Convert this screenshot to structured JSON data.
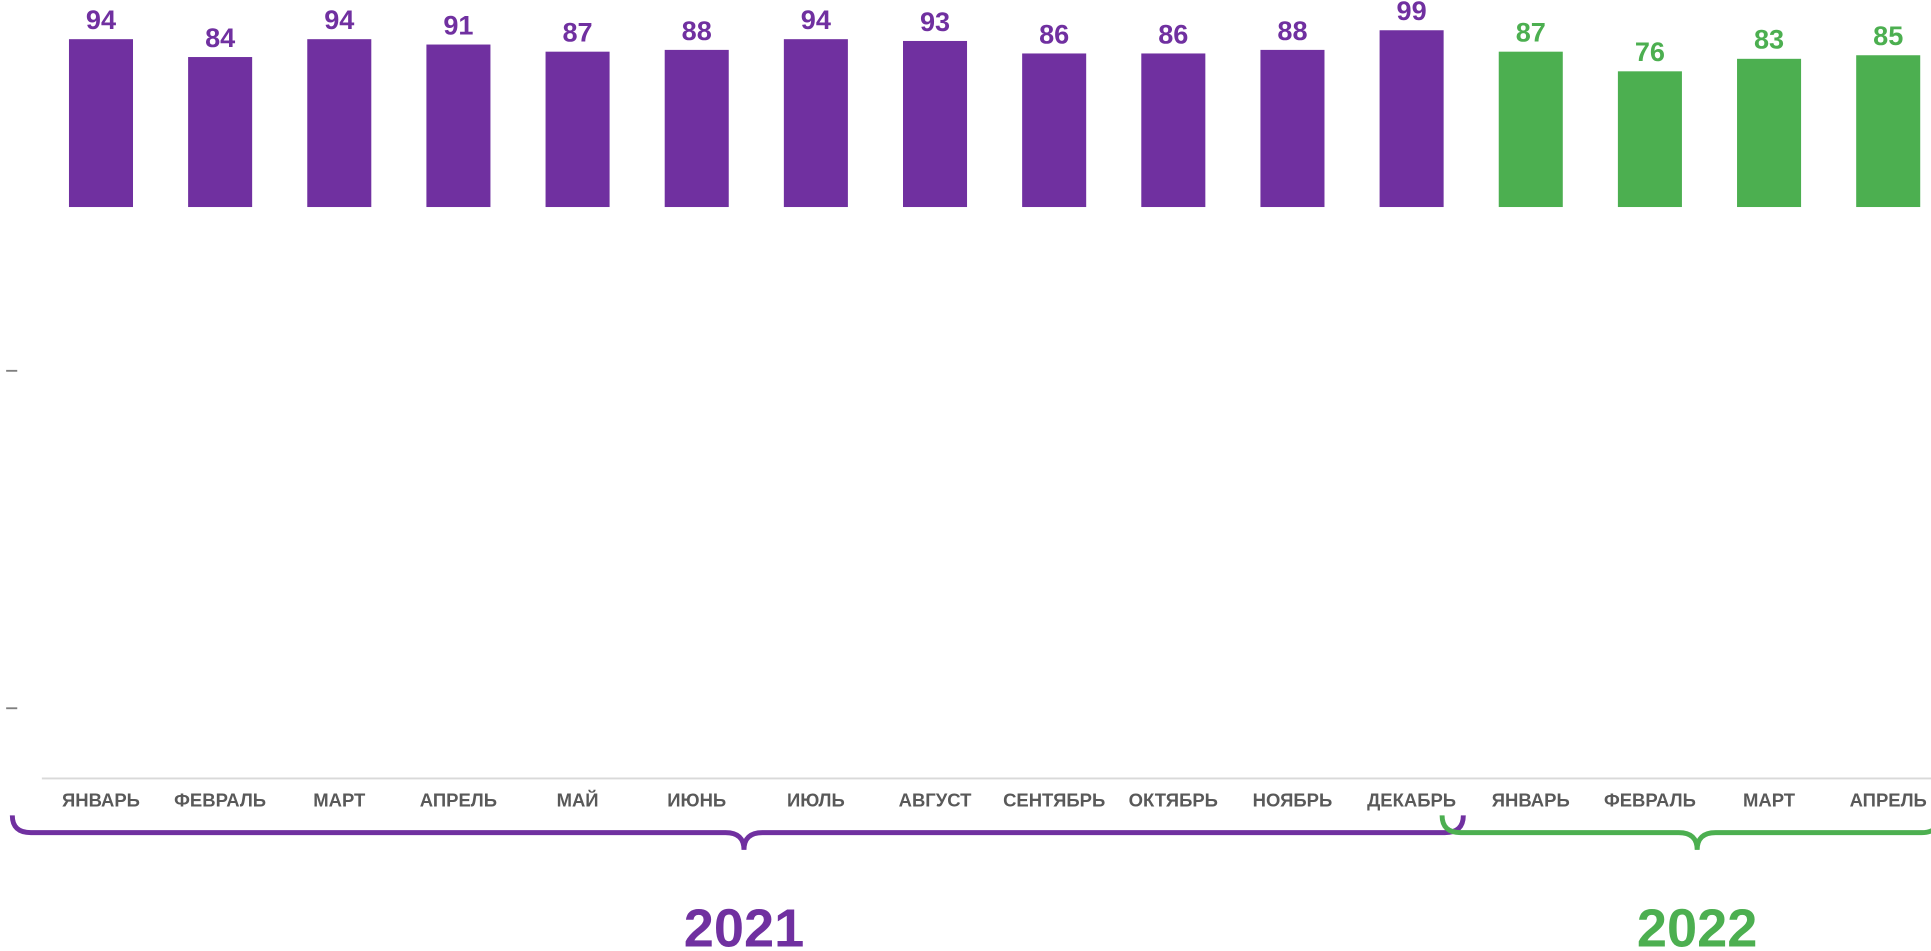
{
  "chart_data": {
    "type": "bar",
    "categories": [
      "ЯНВАРЬ",
      "ФЕВРАЛЬ",
      "МАРТ",
      "АПРЕЛЬ",
      "МАЙ",
      "ИЮНЬ",
      "ИЮЛЬ",
      "АВГУСТ",
      "СЕНТЯБРЬ",
      "ОКТЯБРЬ",
      "НОЯБРЬ",
      "ДЕКАБРЬ",
      "ЯНВАРЬ",
      "ФЕВРАЛЬ",
      "МАРТ",
      "АПРЕЛЬ"
    ],
    "series": [
      {
        "name": "2021",
        "color": "#7030a0",
        "values": [
          94,
          84,
          94,
          91,
          87,
          88,
          94,
          93,
          86,
          86,
          88,
          99,
          null,
          null,
          null,
          null
        ]
      },
      {
        "name": "2022",
        "color": "#4caf50",
        "values": [
          null,
          null,
          null,
          null,
          null,
          null,
          null,
          null,
          null,
          null,
          null,
          null,
          87,
          76,
          83,
          85
        ]
      }
    ],
    "ylim": [
      -320,
      100
    ]
  }
}
